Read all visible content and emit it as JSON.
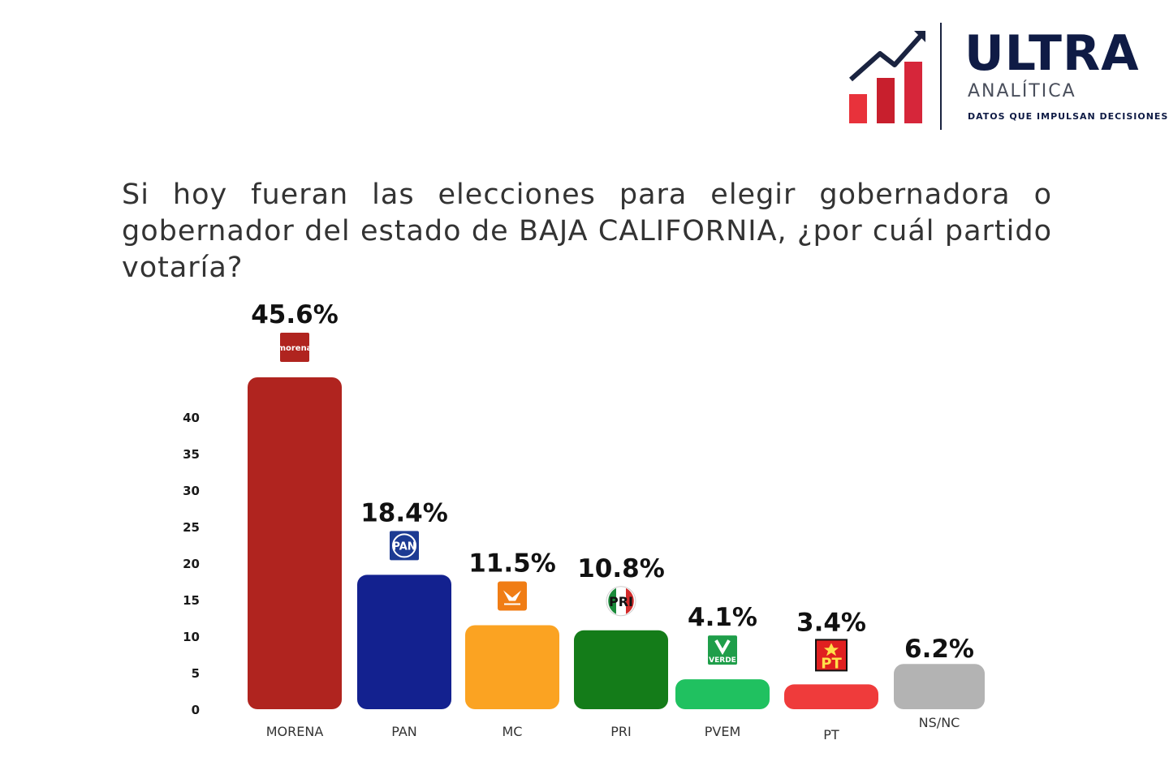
{
  "brand": {
    "name": "ULTRA",
    "subtitle": "ANALÍTICA",
    "tagline": "DATOS QUE IMPULSAN DECISIONES"
  },
  "question": "Si hoy fueran las elecciones para elegir gobernadora o gobernador del estado de BAJA CALIFORNIA, ¿por cuál partido votaría?",
  "chart_data": {
    "type": "bar",
    "title": "Si hoy fueran las elecciones para elegir gobernadora o gobernador del estado de BAJA CALIFORNIA, ¿por cuál partido votaría?",
    "xlabel": "",
    "ylabel": "",
    "grid": false,
    "yticks": [
      0,
      5,
      10,
      15,
      20,
      25,
      30,
      35,
      40
    ],
    "categories": [
      "MORENA",
      "PAN",
      "MC",
      "PRI",
      "PVEM",
      "PT",
      "NS/NC"
    ],
    "values": [
      45.6,
      18.4,
      11.5,
      10.8,
      4.1,
      3.4,
      6.2
    ],
    "value_labels": [
      "45.6%",
      "18.4%",
      "11.5%",
      "10.8%",
      "4.1%",
      "3.4%",
      "6.2%"
    ],
    "colors": [
      "#b0241f",
      "#13218f",
      "#fba322",
      "#147c19",
      "#20c160",
      "#ef3b3b",
      "#b3b3b3"
    ],
    "party_logos": [
      "morena",
      "PAN",
      "mc-eagle",
      "PRI",
      "VERDE",
      "PT",
      null
    ],
    "logo_colors": [
      "#b0241f",
      "#1d3b93",
      "#f07d15",
      "#1a8a3a",
      "#1f9e4a",
      "#e02020",
      null
    ]
  }
}
